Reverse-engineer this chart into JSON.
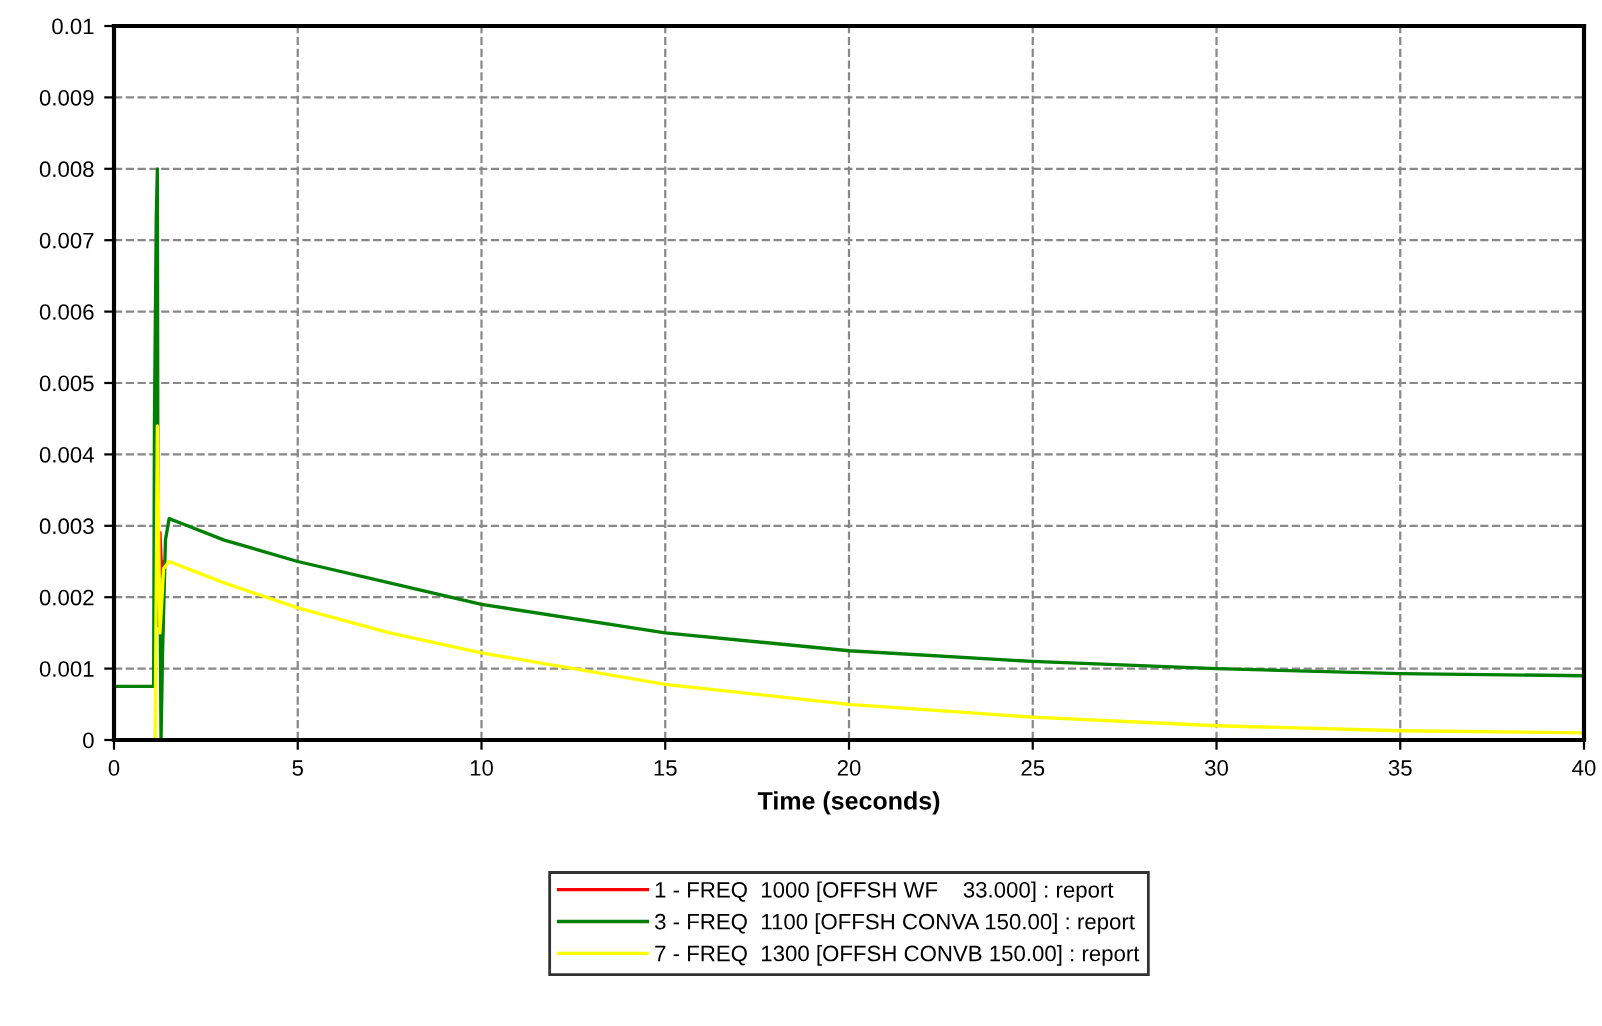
{
  "chart_data": {
    "type": "line",
    "xlabel": "Time (seconds)",
    "xlim": [
      0,
      40
    ],
    "xticks": [
      0,
      5,
      10,
      15,
      20,
      25,
      30,
      35,
      40
    ],
    "ylim": [
      0,
      0.01
    ],
    "yticks": [
      0,
      0.001,
      0.002,
      0.003,
      0.004,
      0.005,
      0.006,
      0.007,
      0.008,
      0.009,
      0.01
    ],
    "grid": true,
    "legend": "bottom",
    "series": [
      {
        "name": "1 - FREQ  1000 [OFFSH WF    33.000] : report",
        "color": "#ff0000",
        "x": [
          1.25,
          1.3,
          1.35
        ],
        "values": [
          0.0029,
          0.0023,
          0.0025
        ]
      },
      {
        "name": "3 - FREQ  1100 [OFFSH CONVA 150.00] : report",
        "color": "#008000",
        "x": [
          0,
          1.08,
          1.1,
          1.15,
          1.18,
          1.2,
          1.25,
          1.28,
          1.32,
          1.4,
          1.5,
          2,
          3,
          5,
          7.5,
          10,
          15,
          20,
          25,
          30,
          35,
          40
        ],
        "values": [
          0.00075,
          0.00075,
          0.0044,
          0.0073,
          0.008,
          0.0016,
          0.0023,
          0,
          0.0012,
          0.0028,
          0.0031,
          0.003,
          0.0028,
          0.0025,
          0.0022,
          0.0019,
          0.0015,
          0.00125,
          0.0011,
          0.001,
          0.00093,
          0.0009
        ]
      },
      {
        "name": "7 - FREQ  1300 [OFFSH CONVB 150.00] : report",
        "color": "#ffff00",
        "x": [
          0,
          1.12,
          1.18,
          1.25,
          1.35,
          1.5,
          2,
          3,
          5,
          7.5,
          10,
          15,
          20,
          25,
          30,
          35,
          40
        ],
        "values": [
          0,
          0,
          0.0044,
          0.0015,
          0.0024,
          0.0025,
          0.0024,
          0.0022,
          0.00185,
          0.0015,
          0.00122,
          0.00078,
          0.0005,
          0.00032,
          0.0002,
          0.00013,
          0.0001
        ]
      }
    ]
  }
}
